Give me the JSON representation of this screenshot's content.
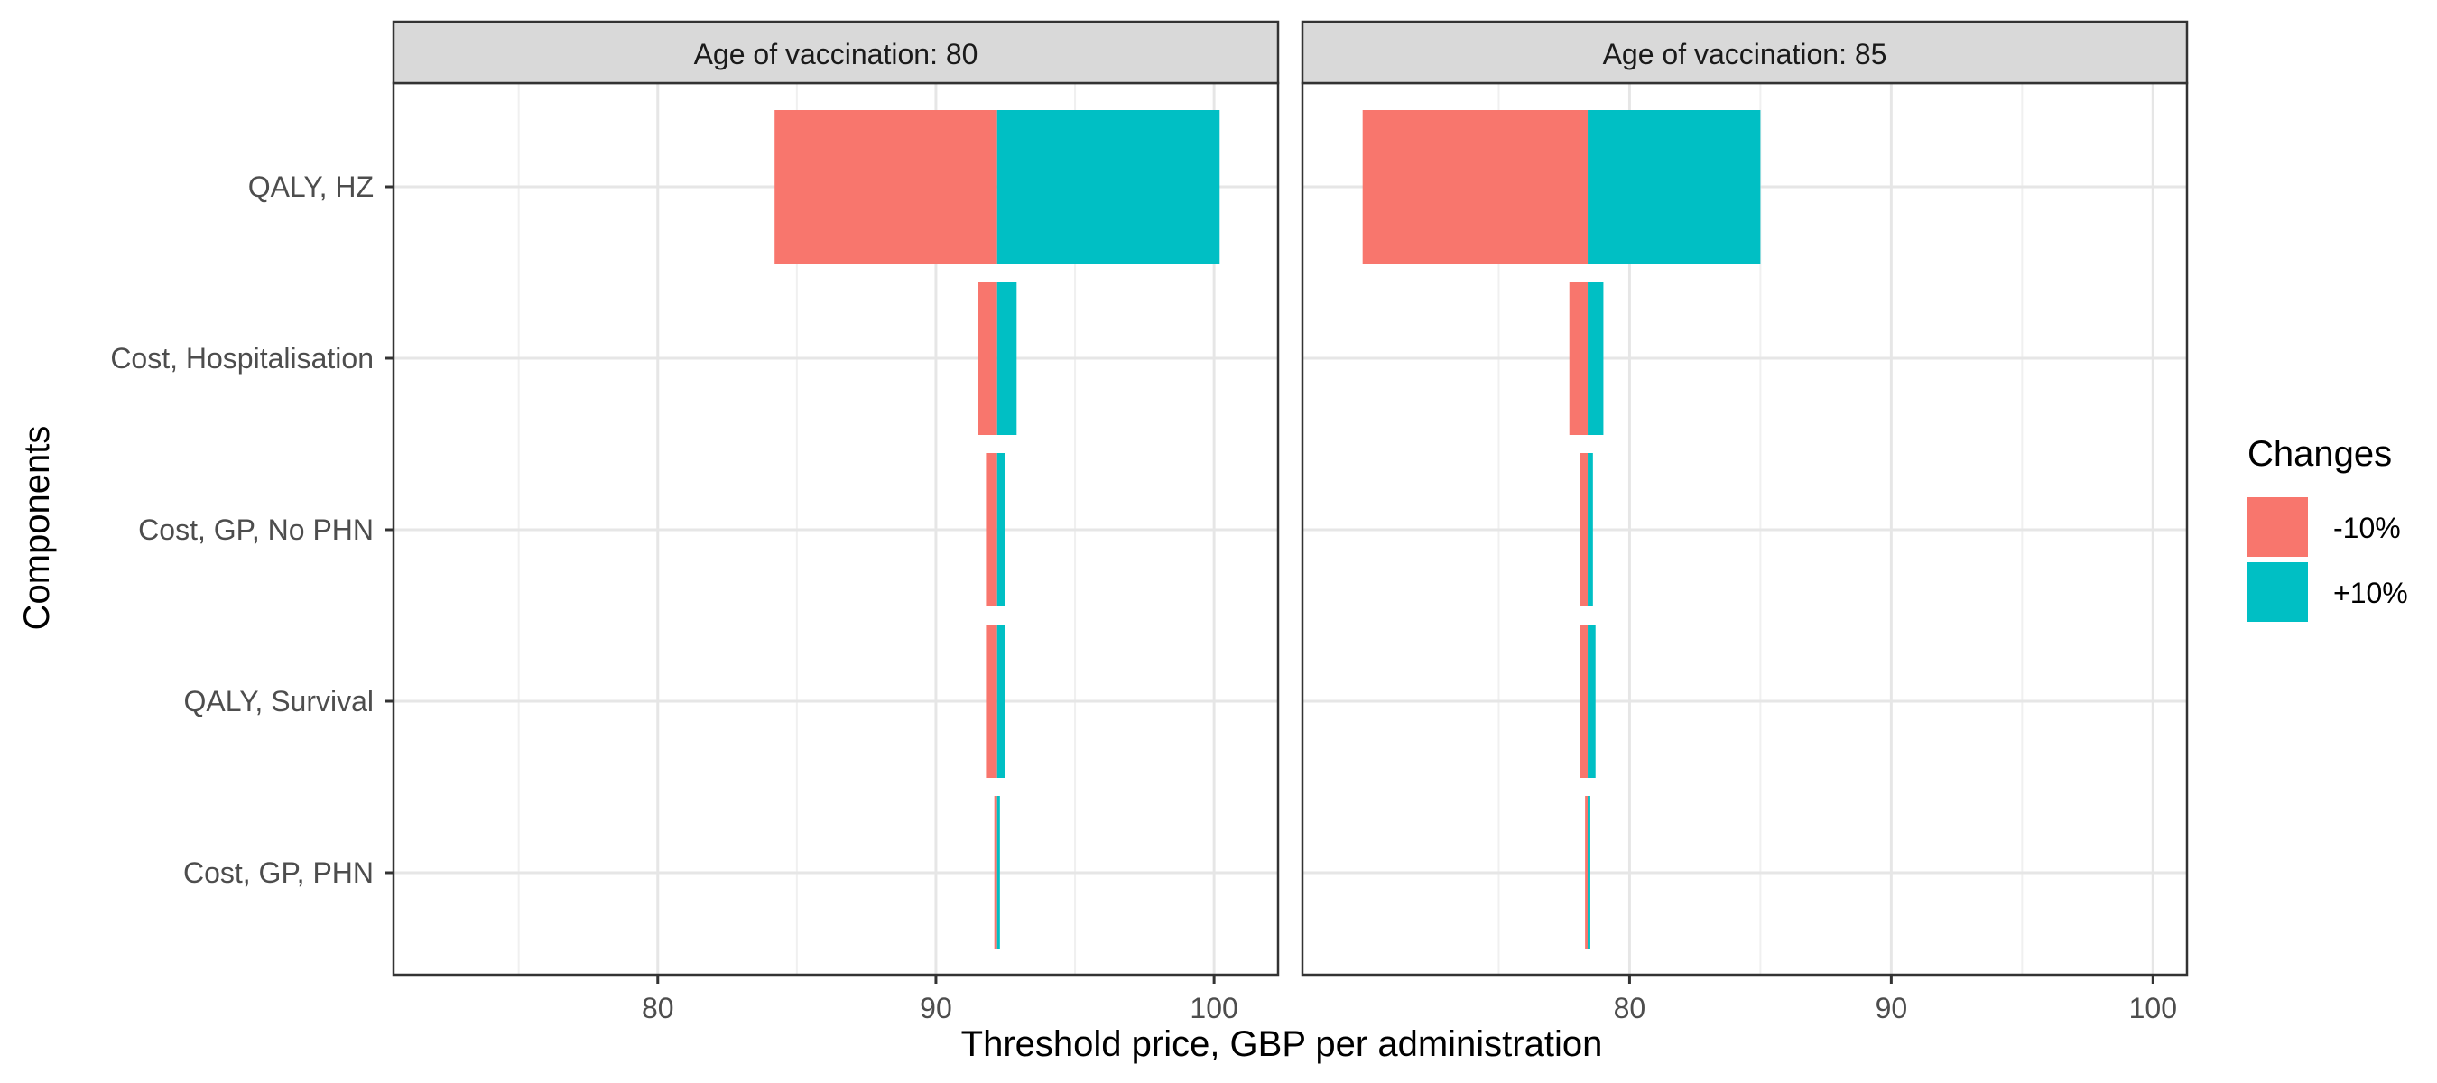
{
  "chart_data": {
    "type": "bar",
    "subtype": "tornado",
    "xlabel": "Threshold price, GBP per administration",
    "ylabel": "Components",
    "categories": [
      "QALY, HZ",
      "Cost, Hospitalisation",
      "Cost, GP, No PHN",
      "QALY, Survival",
      "Cost, GP, PHN"
    ],
    "x_ticks": [
      80,
      90,
      100
    ],
    "legend": {
      "title": "Changes",
      "placement": "right",
      "items": [
        {
          "label": "-10%",
          "color": "#F8766D"
        },
        {
          "label": "+10%",
          "color": "#00BFC4"
        }
      ]
    },
    "grid": true,
    "panels": [
      {
        "strip": "Age of vaccination: 80",
        "xlim": [
          70.5,
          102.3
        ],
        "base": 92.2,
        "bars": [
          {
            "category": "QALY, HZ",
            "minus": 84.2,
            "plus": 100.2
          },
          {
            "category": "Cost, Hospitalisation",
            "minus": 91.5,
            "plus": 92.9
          },
          {
            "category": "Cost, GP, No PHN",
            "minus": 91.8,
            "plus": 92.5
          },
          {
            "category": "QALY, Survival",
            "minus": 91.8,
            "plus": 92.5
          },
          {
            "category": "Cost, GP, PHN",
            "minus": 92.1,
            "plus": 92.3
          }
        ]
      },
      {
        "strip": "Age of vaccination: 85",
        "xlim": [
          67.5,
          101.3
        ],
        "base": 78.4,
        "bars": [
          {
            "category": "QALY, HZ",
            "minus": 69.8,
            "plus": 85.0
          },
          {
            "category": "Cost, Hospitalisation",
            "minus": 77.7,
            "plus": 79.0
          },
          {
            "category": "Cost, GP, No PHN",
            "minus": 78.1,
            "plus": 78.6
          },
          {
            "category": "QALY, Survival",
            "minus": 78.1,
            "plus": 78.7
          },
          {
            "category": "Cost, GP, PHN",
            "minus": 78.3,
            "plus": 78.5
          }
        ]
      }
    ]
  }
}
